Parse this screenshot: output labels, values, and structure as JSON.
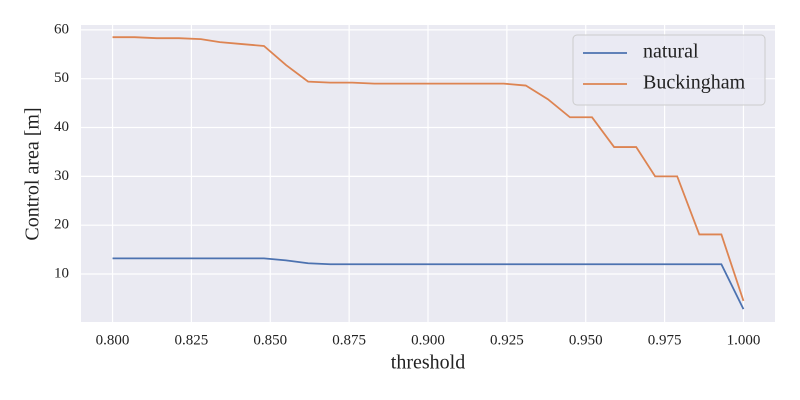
{
  "chart_data": {
    "type": "line",
    "x_label": "threshold",
    "y_label": "Control area [m]",
    "x": [
      0.8,
      0.807,
      0.814,
      0.821,
      0.828,
      0.834,
      0.841,
      0.848,
      0.855,
      0.862,
      0.869,
      0.876,
      0.883,
      0.89,
      0.897,
      0.903,
      0.91,
      0.917,
      0.924,
      0.931,
      0.938,
      0.945,
      0.952,
      0.959,
      0.966,
      0.972,
      0.979,
      0.986,
      0.993,
      1.0
    ],
    "series": [
      {
        "name": "natural",
        "color": "#4c72b0",
        "values": [
          13.2,
          13.2,
          13.2,
          13.2,
          13.2,
          13.2,
          13.2,
          13.2,
          12.8,
          12.2,
          12.0,
          12.0,
          12.0,
          12.0,
          12.0,
          12.0,
          12.0,
          12.0,
          12.0,
          12.0,
          12.0,
          12.0,
          12.0,
          12.0,
          12.0,
          12.0,
          12.0,
          12.0,
          12.0,
          2.8
        ]
      },
      {
        "name": "Buckingham",
        "color": "#dd8452",
        "values": [
          58.5,
          58.5,
          58.3,
          58.3,
          58.1,
          57.5,
          57.1,
          56.7,
          52.8,
          49.4,
          49.2,
          49.2,
          49.0,
          49.0,
          49.0,
          49.0,
          49.0,
          49.0,
          49.0,
          48.6,
          45.8,
          42.1,
          42.1,
          36.0,
          36.0,
          30.0,
          30.0,
          18.1,
          18.1,
          4.5
        ]
      }
    ],
    "xlim": [
      0.79,
      1.01
    ],
    "ylim": [
      0.17,
      61.0
    ],
    "xticks": [
      {
        "value": 0.8,
        "label": "0.800"
      },
      {
        "value": 0.825,
        "label": "0.825"
      },
      {
        "value": 0.85,
        "label": "0.850"
      },
      {
        "value": 0.875,
        "label": "0.875"
      },
      {
        "value": 0.9,
        "label": "0.900"
      },
      {
        "value": 0.925,
        "label": "0.925"
      },
      {
        "value": 0.95,
        "label": "0.950"
      },
      {
        "value": 0.975,
        "label": "0.975"
      },
      {
        "value": 1.0,
        "label": "1.000"
      }
    ],
    "yticks": [
      10,
      20,
      30,
      40,
      50,
      60
    ],
    "grid": true,
    "legend": "upper-right"
  }
}
